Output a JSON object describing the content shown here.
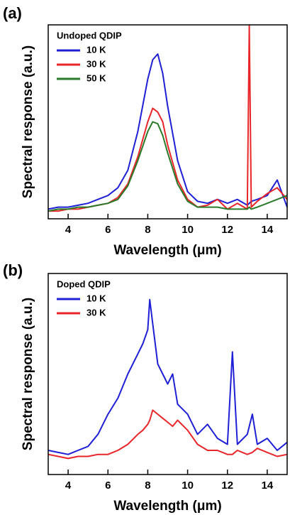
{
  "chart_data": [
    {
      "type": "line",
      "panel_label": "(a)",
      "legend_title": "Undoped QDIP",
      "legend": "upper left",
      "x_label": "Wavelength (μm)",
      "y_label": "Spectral response (a.u.)",
      "xlim": [
        3,
        15
      ],
      "xticks": [
        4,
        6,
        8,
        10,
        12,
        14
      ],
      "ylim": [
        0,
        1
      ],
      "x": [
        3,
        3.5,
        4,
        4.5,
        5,
        5.5,
        6,
        6.5,
        7,
        7.5,
        8,
        8.25,
        8.5,
        8.75,
        9,
        9.5,
        10,
        10.5,
        11,
        11.5,
        12,
        12.5,
        13,
        13.1,
        13.2,
        13.5,
        14,
        14.5,
        15
      ],
      "series": [
        {
          "name": "10 K",
          "color": "#1f1fd6",
          "values": [
            0.05,
            0.06,
            0.06,
            0.07,
            0.08,
            0.1,
            0.12,
            0.16,
            0.25,
            0.45,
            0.72,
            0.82,
            0.85,
            0.75,
            0.58,
            0.3,
            0.14,
            0.09,
            0.08,
            0.1,
            0.08,
            0.1,
            0.07,
            0.08,
            0.09,
            0.1,
            0.12,
            0.2,
            0.06
          ]
        },
        {
          "name": "30 K",
          "color": "#e8262a",
          "values": [
            0.04,
            0.04,
            0.05,
            0.05,
            0.06,
            0.07,
            0.08,
            0.11,
            0.18,
            0.32,
            0.5,
            0.57,
            0.55,
            0.5,
            0.38,
            0.2,
            0.1,
            0.06,
            0.07,
            0.1,
            0.05,
            0.08,
            0.05,
            1.0,
            0.06,
            0.09,
            0.13,
            0.16,
            0.1
          ]
        },
        {
          "name": "50 K",
          "color": "#2a7a2a",
          "values": [
            0.04,
            0.05,
            0.05,
            0.06,
            0.06,
            0.07,
            0.08,
            0.1,
            0.17,
            0.3,
            0.45,
            0.5,
            0.49,
            0.43,
            0.34,
            0.18,
            0.09,
            0.06,
            0.06,
            0.06,
            0.05,
            0.05,
            0.05,
            0.06,
            0.05,
            0.06,
            0.08,
            0.1,
            0.12
          ]
        }
      ]
    },
    {
      "type": "line",
      "panel_label": "(b)",
      "legend_title": "Doped QDIP",
      "legend": "upper left",
      "x_label": "Wavelength (μm)",
      "y_label": "Spectral response (a.u.)",
      "xlim": [
        3,
        15
      ],
      "xticks": [
        4,
        6,
        8,
        10,
        12,
        14
      ],
      "ylim": [
        0,
        1
      ],
      "x": [
        3,
        3.5,
        4,
        4.5,
        5,
        5.5,
        6,
        6.5,
        7,
        7.5,
        7.75,
        8,
        8.1,
        8.25,
        8.5,
        8.75,
        9,
        9.25,
        9.5,
        10,
        10.5,
        11,
        11.5,
        12,
        12.25,
        12.5,
        13,
        13.25,
        13.5,
        14,
        14.5,
        15
      ],
      "series": [
        {
          "name": "10 K",
          "color": "#1f1fd6",
          "values": [
            0.12,
            0.11,
            0.1,
            0.12,
            0.14,
            0.2,
            0.3,
            0.38,
            0.5,
            0.6,
            0.65,
            0.72,
            0.87,
            0.75,
            0.55,
            0.5,
            0.45,
            0.5,
            0.35,
            0.3,
            0.2,
            0.25,
            0.18,
            0.15,
            0.61,
            0.15,
            0.2,
            0.3,
            0.15,
            0.18,
            0.12,
            0.16
          ]
        },
        {
          "name": "30 K",
          "color": "#e8262a",
          "values": [
            0.1,
            0.09,
            0.08,
            0.09,
            0.09,
            0.1,
            0.1,
            0.12,
            0.15,
            0.2,
            0.22,
            0.25,
            0.27,
            0.32,
            0.3,
            0.28,
            0.26,
            0.24,
            0.27,
            0.22,
            0.15,
            0.12,
            0.12,
            0.1,
            0.1,
            0.12,
            0.1,
            0.11,
            0.13,
            0.11,
            0.09,
            0.1
          ]
        }
      ]
    }
  ]
}
